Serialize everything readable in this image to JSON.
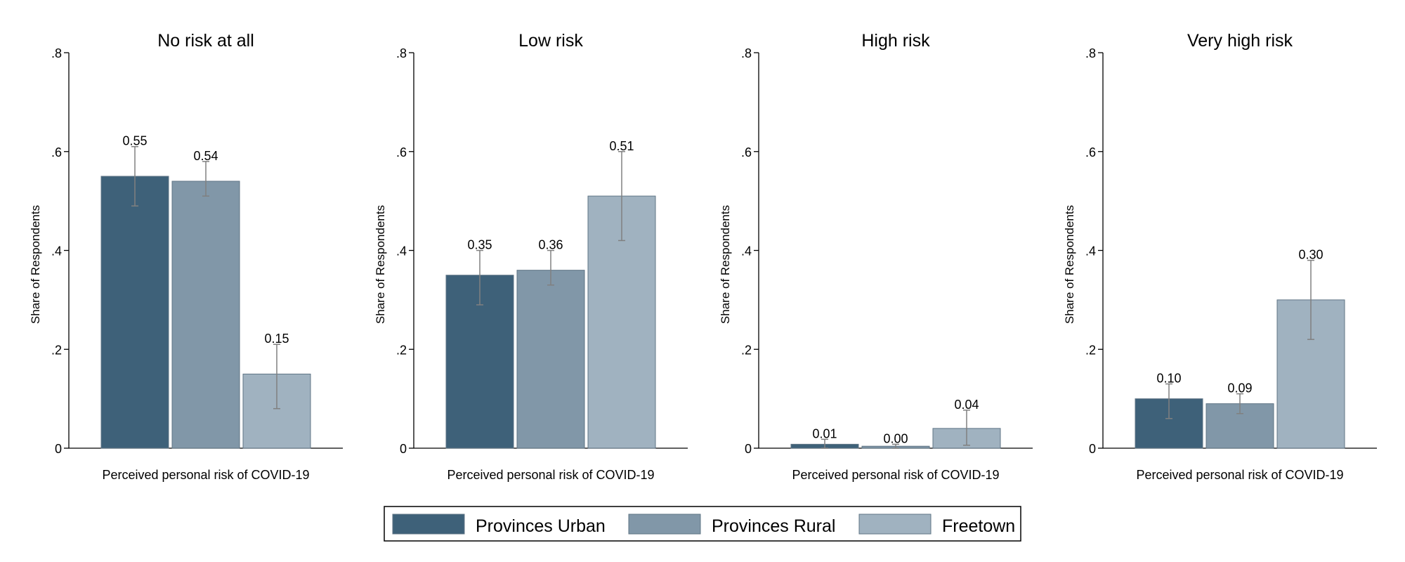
{
  "chart_data": [
    {
      "type": "bar",
      "title": "No risk at all",
      "xlabel": "Perceived personal risk of COVID-19",
      "ylabel": "Share of Respondents",
      "ylim": [
        0,
        0.8
      ],
      "yticks": [
        0,
        0.2,
        0.4,
        0.6,
        0.8
      ],
      "ytick_labels": [
        "0",
        ".2",
        ".4",
        ".6",
        ".8"
      ],
      "categories": [
        "Provinces Urban",
        "Provinces Rural",
        "Freetown"
      ],
      "values": [
        0.55,
        0.54,
        0.15
      ],
      "value_labels": [
        "0.55",
        "0.54",
        "0.15"
      ],
      "ci": [
        [
          0.49,
          0.61
        ],
        [
          0.51,
          0.58
        ],
        [
          0.08,
          0.21
        ]
      ]
    },
    {
      "type": "bar",
      "title": "Low risk",
      "xlabel": "Perceived personal risk of COVID-19",
      "ylabel": "Share of Respondents",
      "ylim": [
        0,
        0.8
      ],
      "yticks": [
        0,
        0.2,
        0.4,
        0.6,
        0.8
      ],
      "ytick_labels": [
        "0",
        ".2",
        ".4",
        ".6",
        ".8"
      ],
      "categories": [
        "Provinces Urban",
        "Provinces Rural",
        "Freetown"
      ],
      "values": [
        0.35,
        0.36,
        0.51
      ],
      "value_labels": [
        "0.35",
        "0.36",
        "0.51"
      ],
      "ci": [
        [
          0.29,
          0.4
        ],
        [
          0.33,
          0.4
        ],
        [
          0.42,
          0.6
        ]
      ]
    },
    {
      "type": "bar",
      "title": "High risk",
      "xlabel": "Perceived personal risk of COVID-19",
      "ylabel": "Share of Respondents",
      "ylim": [
        0,
        0.8
      ],
      "yticks": [
        0,
        0.2,
        0.4,
        0.6,
        0.8
      ],
      "ytick_labels": [
        "0",
        ".2",
        ".4",
        ".6",
        ".8"
      ],
      "categories": [
        "Provinces Urban",
        "Provinces Rural",
        "Freetown"
      ],
      "values": [
        0.008,
        0.004,
        0.04
      ],
      "value_labels": [
        "0.01",
        "0.00",
        "0.04"
      ],
      "ci": [
        [
          0.0,
          0.018
        ],
        [
          0.0,
          0.008
        ],
        [
          0.006,
          0.077
        ]
      ]
    },
    {
      "type": "bar",
      "title": "Very high risk",
      "xlabel": "Perceived personal risk of COVID-19",
      "ylabel": "Share of Respondents",
      "ylim": [
        0,
        0.8
      ],
      "yticks": [
        0,
        0.2,
        0.4,
        0.6,
        0.8
      ],
      "ytick_labels": [
        "0",
        ".2",
        ".4",
        ".6",
        ".8"
      ],
      "categories": [
        "Provinces Urban",
        "Provinces Rural",
        "Freetown"
      ],
      "values": [
        0.1,
        0.09,
        0.3
      ],
      "value_labels": [
        "0.10",
        "0.09",
        "0.30"
      ],
      "ci": [
        [
          0.06,
          0.13
        ],
        [
          0.07,
          0.11
        ],
        [
          0.22,
          0.38
        ]
      ]
    }
  ],
  "legend": {
    "placement": "bottom-center",
    "items": [
      {
        "label": "Provinces Urban",
        "color": "#3e6179"
      },
      {
        "label": "Provinces Rural",
        "color": "#8197a8"
      },
      {
        "label": "Freetown",
        "color": "#a0b2c0"
      }
    ]
  },
  "colors": {
    "bar_stroke": "#5f7485",
    "error_bar": "#808080",
    "axis": "#000000"
  }
}
